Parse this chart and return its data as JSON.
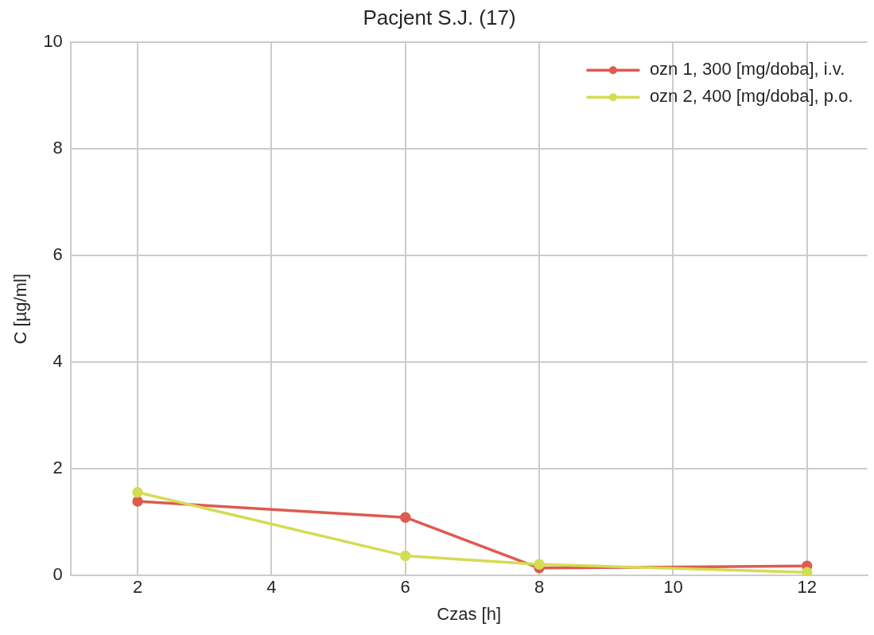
{
  "chart_data": {
    "type": "line",
    "title": "Pacjent S.J. (17)",
    "xlabel": "Czas [h]",
    "ylabel": "C [µg/ml]",
    "x": [
      2,
      6,
      8,
      12
    ],
    "series": [
      {
        "name": "ozn 1, 300 [mg/doba], i.v.",
        "color": "#dd5b50",
        "values": [
          1.39,
          1.09,
          0.14,
          0.18
        ]
      },
      {
        "name": "ozn 2, 400 [mg/doba], p.o.",
        "color": "#d4dc52",
        "values": [
          1.56,
          0.37,
          0.21,
          0.06
        ]
      }
    ],
    "xlim": [
      1,
      12.9
    ],
    "xticks": [
      2,
      4,
      6,
      8,
      10,
      12
    ],
    "ylim": [
      0,
      10
    ],
    "yticks": [
      0,
      2,
      4,
      6,
      8,
      10
    ],
    "grid": true,
    "legend": "top right",
    "marker": "circle",
    "line_style": "solid"
  }
}
